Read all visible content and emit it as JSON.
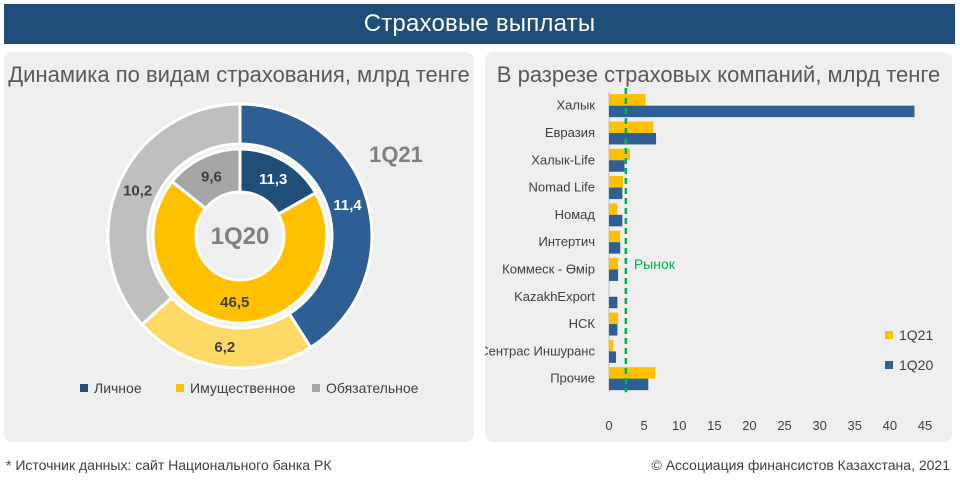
{
  "header": {
    "title": "Страховые выплаты"
  },
  "footer": {
    "source": "* Источник данных: сайт Национального банка РК",
    "copyright": "© Ассоциация финансистов Казахстана, 2021"
  },
  "colors": {
    "header_bg": "#1f4e79",
    "personal_outer": "#2e5f94",
    "property_outer": "#ffd966",
    "mandatory_outer": "#bfbfbf",
    "personal_inner": "#1f4e79",
    "property_inner": "#ffc000",
    "mandatory_inner": "#a6a6a6",
    "bar_q21": "#ffc000",
    "bar_q20": "#2e5f94",
    "market_line": "#00b050"
  },
  "chart_data": [
    {
      "type": "pie",
      "title": "Динамика по видам страхования, млрд тенге",
      "outer_ring_label": "1Q21",
      "center_label": "1Q20",
      "categories": [
        "Личное",
        "Имущественное",
        "Обязательное"
      ],
      "rings": [
        {
          "name": "1Q21",
          "position": "outer",
          "values": [
            11.4,
            6.2,
            10.2
          ],
          "labels": [
            "11,4",
            "6,2",
            "10,2"
          ]
        },
        {
          "name": "1Q20",
          "position": "inner",
          "values": [
            11.3,
            46.5,
            9.6
          ],
          "labels": [
            "11,3",
            "46,5",
            "9,6"
          ]
        }
      ],
      "legend": [
        "Личное",
        "Имущественное",
        "Обязательное"
      ],
      "legend_position": "bottom"
    },
    {
      "type": "bar",
      "orientation": "horizontal",
      "title": "В разрезе страховых компаний, млрд тенге",
      "categories": [
        "Халык",
        "Евразия",
        "Халык-Life",
        "Nomad Life",
        "Номад",
        "Интертич",
        "Коммеск - Өмір",
        "KazakhExport",
        "НСК",
        "Сентрас Иншуранс",
        "Прочие"
      ],
      "series": [
        {
          "name": "1Q21",
          "values": [
            5.2,
            6.3,
            3.0,
            2.0,
            1.2,
            1.6,
            1.3,
            0.0,
            1.3,
            0.6,
            6.6
          ]
        },
        {
          "name": "1Q20",
          "values": [
            43.5,
            6.7,
            2.2,
            1.9,
            1.9,
            1.6,
            1.3,
            1.2,
            1.2,
            1.0,
            5.6
          ]
        }
      ],
      "x_ticks": [
        "0",
        "5",
        "10",
        "15",
        "20",
        "25",
        "30",
        "35",
        "40",
        "45"
      ],
      "xlim": [
        0,
        45
      ],
      "reference_line": {
        "label": "Рынок",
        "value": 2.4
      },
      "legend": [
        "1Q21",
        "1Q20"
      ],
      "legend_position": "right",
      "grid": false
    }
  ]
}
